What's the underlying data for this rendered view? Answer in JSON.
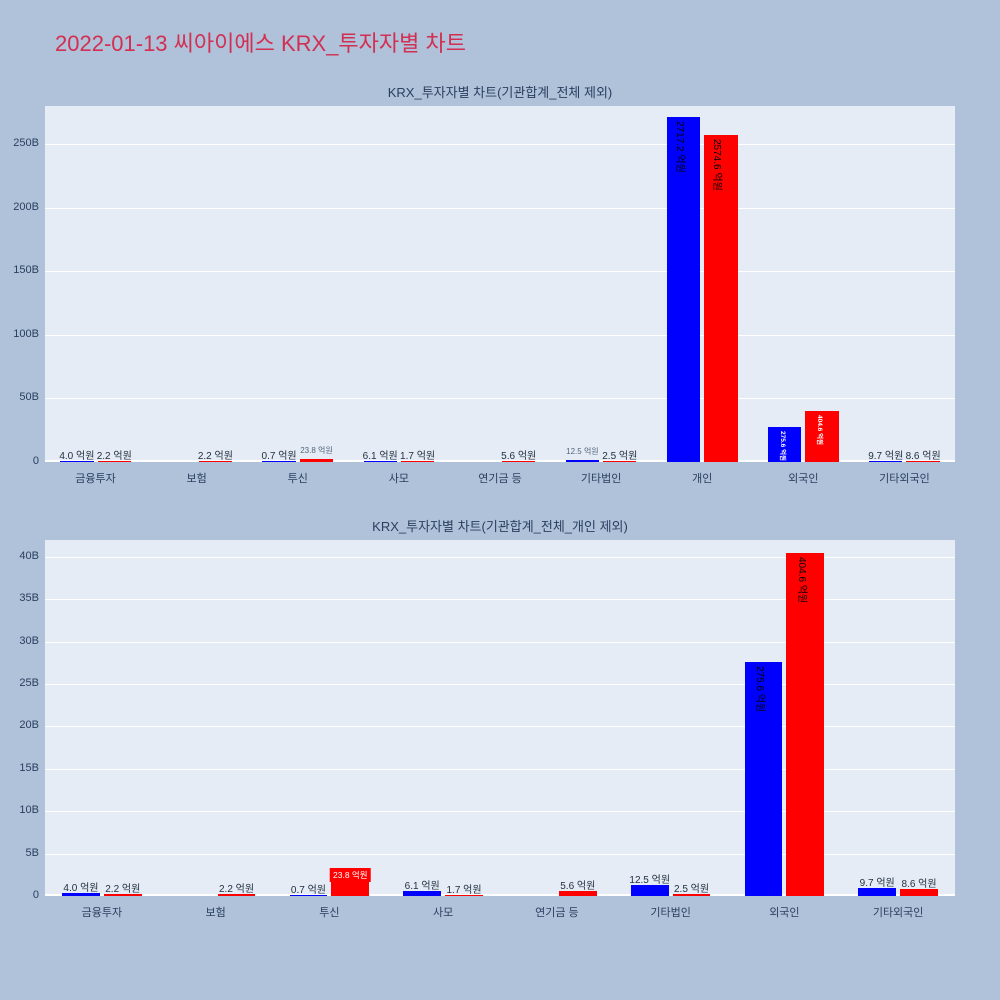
{
  "page": {
    "title": "2022-01-13 씨아이에스 KRX_투자자별 차트"
  },
  "colors": {
    "page_bg": "#afc2d9",
    "title": "#d22f52",
    "plot_bg": "#e5ecf6",
    "grid": "#ffffff",
    "axis_text": "#2a3f5f",
    "buy": "#0000ff",
    "sell": "#ff0000"
  },
  "chart_data": [
    {
      "type": "bar",
      "title": "KRX_투자자별 차트(기관합계_전체 제외)",
      "xlabel": "",
      "ylabel": "",
      "grid": true,
      "legend": false,
      "ylim": [
        0,
        280
      ],
      "yticks": [
        {
          "value": 0,
          "label": "0"
        },
        {
          "value": 50,
          "label": "50B"
        },
        {
          "value": 100,
          "label": "100B"
        },
        {
          "value": 150,
          "label": "150B"
        },
        {
          "value": 200,
          "label": "200B"
        },
        {
          "value": 250,
          "label": "250B"
        }
      ],
      "categories": [
        "금융투자",
        "보험",
        "투신",
        "사모",
        "연기금 등",
        "기타법인",
        "개인",
        "외국인",
        "기타외국인"
      ],
      "series": [
        {
          "name": "blue",
          "color": "#0000ff",
          "values_b": [
            0.4,
            0,
            0.07,
            0.61,
            0,
            1.25,
            271.72,
            27.56,
            0.97
          ],
          "labels": [
            "4.0 억원",
            "",
            "0.7 억원",
            "6.1 억원",
            "",
            "12.5 억원",
            "2717.2 억원",
            "275.6 억원",
            "9.7 억원"
          ],
          "label_modes": [
            "out",
            "none",
            "out",
            "out",
            "none",
            "out-small",
            "in",
            "in-white",
            "out"
          ]
        },
        {
          "name": "red",
          "color": "#ff0000",
          "values_b": [
            0.22,
            0.22,
            2.38,
            0.17,
            0.56,
            0.25,
            257.46,
            40.46,
            0.86
          ],
          "labels": [
            "2.2 억원",
            "2.2 억원",
            "23.8 억원",
            "1.7 억원",
            "5.6 억원",
            "2.5 억원",
            "2574.6 억원",
            "404.6 억원",
            "8.6 억원"
          ],
          "label_modes": [
            "out",
            "out",
            "out-small",
            "out",
            "out",
            "out",
            "in",
            "in-white",
            "out"
          ]
        }
      ]
    },
    {
      "type": "bar",
      "title": "KRX_투자자별 차트(기관합계_전체_개인 제외)",
      "xlabel": "",
      "ylabel": "",
      "grid": true,
      "legend": false,
      "ylim": [
        0,
        42
      ],
      "yticks": [
        {
          "value": 0,
          "label": "0"
        },
        {
          "value": 5,
          "label": "5B"
        },
        {
          "value": 10,
          "label": "10B"
        },
        {
          "value": 15,
          "label": "15B"
        },
        {
          "value": 20,
          "label": "20B"
        },
        {
          "value": 25,
          "label": "25B"
        },
        {
          "value": 30,
          "label": "30B"
        },
        {
          "value": 35,
          "label": "35B"
        },
        {
          "value": 40,
          "label": "40B"
        }
      ],
      "categories": [
        "금융투자",
        "보험",
        "투신",
        "사모",
        "연기금 등",
        "기타법인",
        "외국인",
        "기타외국인"
      ],
      "series": [
        {
          "name": "blue",
          "color": "#0000ff",
          "values_b": [
            0.4,
            0,
            0.07,
            0.61,
            0,
            1.25,
            27.56,
            0.97
          ],
          "labels": [
            "4.0 억원",
            "",
            "0.7 억원",
            "6.1 억원",
            "",
            "12.5 억원",
            "275.6 억원",
            "9.7 억원"
          ],
          "label_modes": [
            "out",
            "none",
            "out",
            "out",
            "none",
            "out",
            "in",
            "out"
          ]
        },
        {
          "name": "red",
          "color": "#ff0000",
          "values_b": [
            0.22,
            0.22,
            2.38,
            0.17,
            0.56,
            0.25,
            40.46,
            0.86
          ],
          "labels": [
            "2.2 억원",
            "2.2 억원",
            "23.8 억원",
            "1.7 억원",
            "5.6 억원",
            "2.5 억원",
            "404.6 억원",
            "8.6 억원"
          ],
          "label_modes": [
            "out",
            "out",
            "chip",
            "out",
            "out",
            "out",
            "in",
            "out"
          ]
        }
      ]
    }
  ]
}
